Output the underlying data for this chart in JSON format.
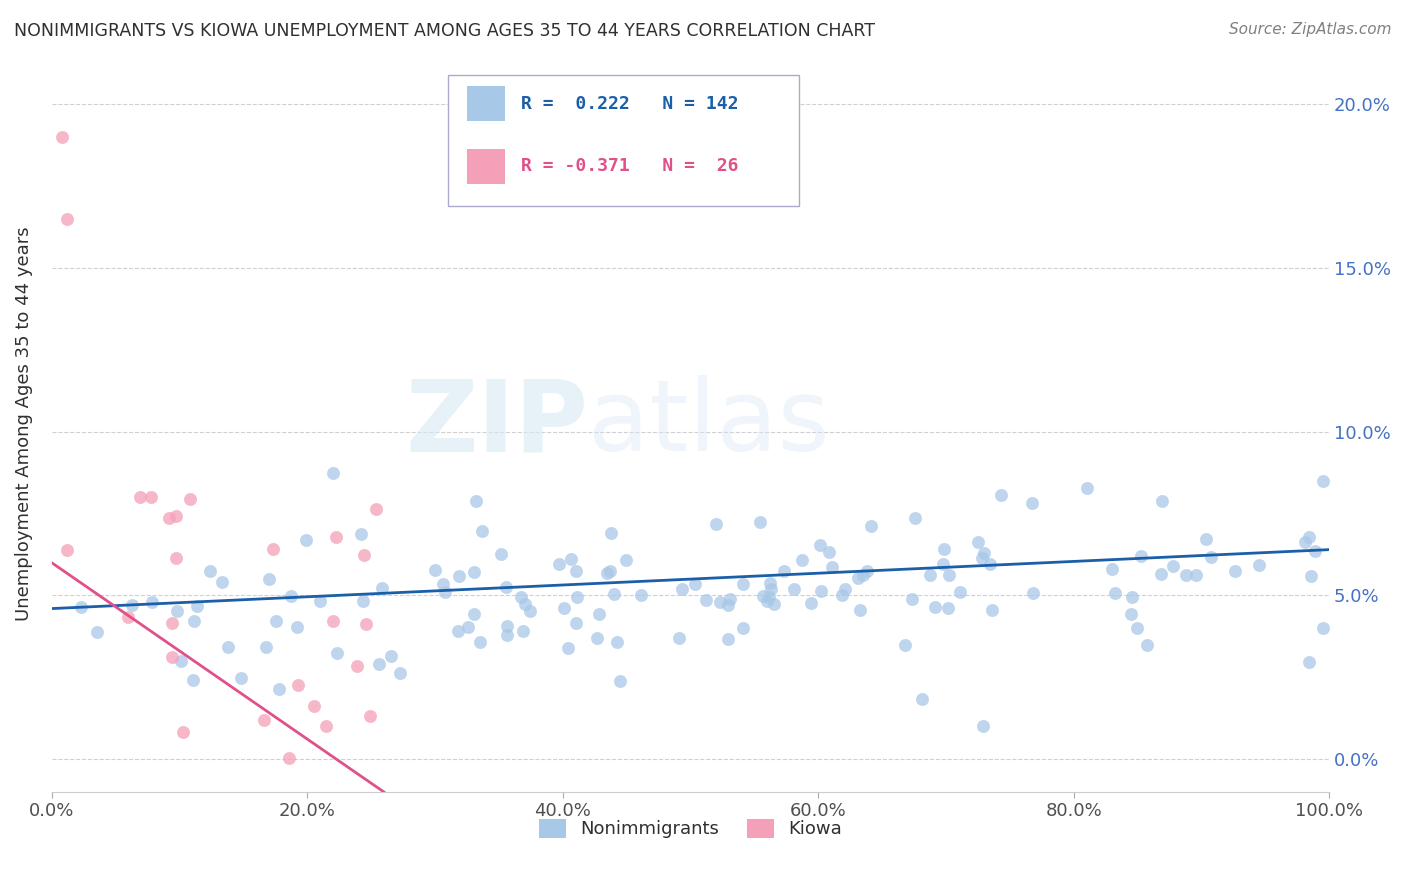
{
  "title": "NONIMMIGRANTS VS KIOWA UNEMPLOYMENT AMONG AGES 35 TO 44 YEARS CORRELATION CHART",
  "source": "Source: ZipAtlas.com",
  "ylabel": "Unemployment Among Ages 35 to 44 years",
  "xlim": [
    0.0,
    1.0
  ],
  "ylim": [
    -0.01,
    0.215
  ],
  "xticks": [
    0.0,
    0.2,
    0.4,
    0.6,
    0.8,
    1.0
  ],
  "yticks": [
    0.0,
    0.05,
    0.1,
    0.15,
    0.2
  ],
  "ytick_labels": [
    "0.0%",
    "5.0%",
    "10.0%",
    "15.0%",
    "20.0%"
  ],
  "xtick_labels": [
    "0.0%",
    "20.0%",
    "40.0%",
    "60.0%",
    "80.0%",
    "100.0%"
  ],
  "blue_color": "#a8c8e8",
  "pink_color": "#f4a0b8",
  "blue_line_color": "#1a5fa8",
  "pink_line_color": "#e0508a",
  "R_blue": 0.222,
  "N_blue": 142,
  "R_pink": -0.371,
  "N_pink": 26,
  "legend_label_blue": "Nonimmigrants",
  "legend_label_pink": "Kiowa",
  "watermark_zip": "ZIP",
  "watermark_atlas": "atlas",
  "background_color": "#ffffff",
  "grid_color": "#d0d0d0",
  "title_color": "#303030",
  "axis_label_color": "#303030",
  "tick_label_color_blue": "#4472c4",
  "tick_label_color_black": "#505050",
  "source_color": "#808080",
  "figsize": [
    14.06,
    8.92
  ],
  "dpi": 100,
  "blue_line_start_y": 0.046,
  "blue_line_end_y": 0.064,
  "pink_line_start_y": 0.06,
  "pink_line_end_x": 0.26,
  "pink_line_end_y": -0.01
}
